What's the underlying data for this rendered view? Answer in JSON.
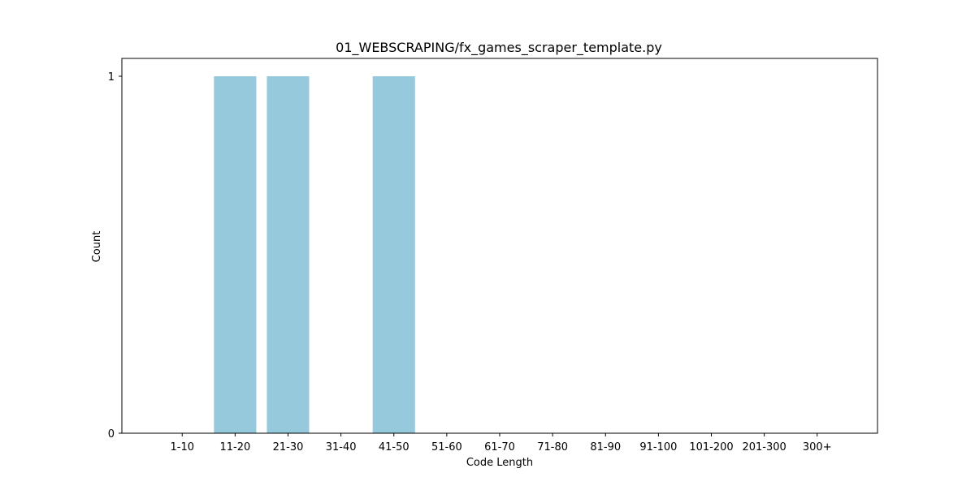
{
  "chart_data": {
    "type": "bar",
    "title": "01_WEBSCRAPING/fx_games_scraper_template.py",
    "xlabel": "Code Length",
    "ylabel": "Count",
    "categories": [
      "1-10",
      "11-20",
      "21-30",
      "31-40",
      "41-50",
      "51-60",
      "61-70",
      "71-80",
      "81-90",
      "91-100",
      "101-200",
      "201-300",
      "300+"
    ],
    "values": [
      0,
      1,
      1,
      0,
      1,
      0,
      0,
      0,
      0,
      0,
      0,
      0,
      0
    ],
    "ylim": [
      0,
      1.05
    ],
    "yticks": [
      0,
      1
    ],
    "bar_color": "#96c9dc",
    "grid": false,
    "legend": "none"
  }
}
